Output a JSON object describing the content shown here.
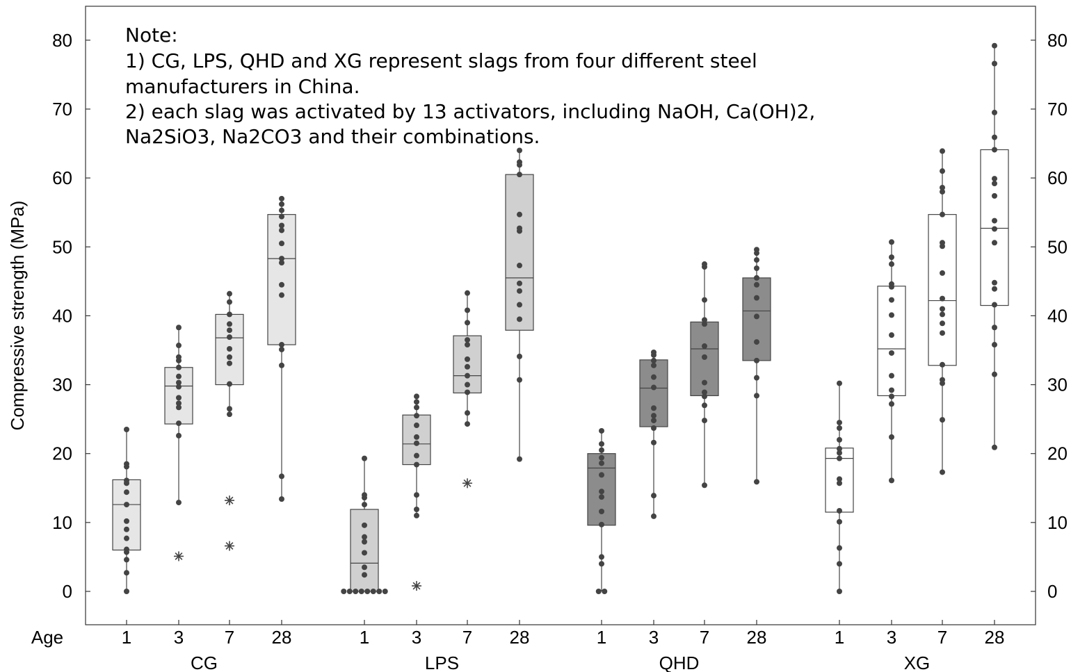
{
  "chart_data": {
    "type": "boxplot",
    "ylabel": "Compressive strength (MPa)",
    "ylim": [
      -5,
      85
    ],
    "yticks": [
      0,
      10,
      20,
      30,
      40,
      50,
      60,
      70,
      80
    ],
    "grid": false,
    "x_row_label": "Age",
    "ages": [
      "1",
      "3",
      "7",
      "28"
    ],
    "note": [
      "Note:",
      "1) CG, LPS, QHD and XG represent slags from four different steel",
      "manufacturers in China.",
      "2) each slag was activated by 13 activators, including NaOH, Ca(OH)2,",
      "Na2SiO3, Na2CO3 and their combinations."
    ],
    "groups": [
      {
        "name": "CG",
        "fill": "#e6e6e6",
        "boxes": [
          {
            "age": "1",
            "q1": 6.0,
            "median": 12.6,
            "q3": 16.2,
            "whisker_low": 0.0,
            "whisker_high": 23.5,
            "points": [
              0.0,
              2.7,
              4.6,
              5.7,
              6.1,
              7.7,
              9.0,
              10.2,
              12.6,
              14.4,
              15.7,
              16.1,
              18.1,
              18.5,
              23.5
            ],
            "outliers": []
          },
          {
            "age": "3",
            "q1": 24.3,
            "median": 29.8,
            "q3": 32.5,
            "whisker_low": 12.9,
            "whisker_high": 38.3,
            "points": [
              12.9,
              22.6,
              24.4,
              26.7,
              27.3,
              28.1,
              29.7,
              30.3,
              31.2,
              32.5,
              33.5,
              34.0,
              35.7,
              38.3
            ],
            "outliers": [
              5.1
            ]
          },
          {
            "age": "7",
            "q1": 30.0,
            "median": 36.8,
            "q3": 40.2,
            "whisker_low": 25.7,
            "whisker_high": 43.2,
            "points": [
              25.7,
              26.5,
              30.1,
              33.1,
              34.0,
              35.2,
              36.9,
              37.9,
              38.8,
              40.2,
              42.0,
              43.2
            ],
            "outliers": [
              13.2,
              6.6
            ]
          },
          {
            "age": "28",
            "q1": 35.8,
            "median": 48.3,
            "q3": 54.7,
            "whisker_low": 13.4,
            "whisker_high": 57.0,
            "points": [
              13.4,
              16.7,
              32.8,
              35.1,
              35.8,
              43.0,
              44.5,
              47.7,
              48.3,
              50.5,
              52.4,
              53.1,
              54.4,
              55.3,
              56.2,
              57.0
            ],
            "outliers": []
          }
        ]
      },
      {
        "name": "LPS",
        "fill": "#d0d0d0",
        "boxes": [
          {
            "age": "1",
            "q1": 0.0,
            "median": 4.1,
            "q3": 11.9,
            "whisker_low": 0.0,
            "whisker_high": 19.3,
            "points": [
              0.0,
              0.0,
              0.0,
              0.0,
              0.0,
              0.0,
              0.0,
              0.0,
              2.4,
              3.5,
              5.6,
              7.2,
              7.9,
              9.6,
              12.6,
              13.6,
              14.0,
              19.3
            ],
            "outliers": []
          },
          {
            "age": "3",
            "q1": 18.4,
            "median": 21.4,
            "q3": 25.6,
            "whisker_low": 11.0,
            "whisker_high": 28.3,
            "points": [
              11.0,
              11.9,
              14.0,
              18.4,
              19.7,
              21.5,
              22.4,
              24.1,
              25.5,
              26.7,
              27.5,
              28.3
            ],
            "outliers": [
              0.8
            ]
          },
          {
            "age": "7",
            "q1": 28.8,
            "median": 31.3,
            "q3": 37.1,
            "whisker_low": 24.3,
            "whisker_high": 43.3,
            "points": [
              24.3,
              25.9,
              28.9,
              30.0,
              31.3,
              32.6,
              33.7,
              35.8,
              36.5,
              39.0,
              40.8,
              43.3
            ],
            "outliers": [
              15.7
            ]
          },
          {
            "age": "28",
            "q1": 37.9,
            "median": 45.5,
            "q3": 60.5,
            "whisker_low": 19.2,
            "whisker_high": 64.0,
            "points": [
              19.2,
              30.7,
              34.1,
              39.5,
              41.6,
              43.6,
              44.7,
              47.3,
              52.3,
              52.7,
              54.7,
              60.5,
              61.9,
              62.3,
              64.0
            ],
            "outliers": []
          }
        ]
      },
      {
        "name": "QHD",
        "fill": "#8c8c8c",
        "boxes": [
          {
            "age": "1",
            "q1": 9.6,
            "median": 17.9,
            "q3": 20.0,
            "whisker_low": 0.0,
            "whisker_high": 23.3,
            "points": [
              0.0,
              0.0,
              4.0,
              5.0,
              9.7,
              11.6,
              13.7,
              14.5,
              16.9,
              18.6,
              19.4,
              20.5,
              21.4,
              23.3
            ],
            "outliers": []
          },
          {
            "age": "3",
            "q1": 23.9,
            "median": 29.5,
            "q3": 33.6,
            "whisker_low": 10.9,
            "whisker_high": 34.7,
            "points": [
              10.9,
              13.9,
              21.6,
              23.7,
              24.8,
              25.5,
              26.6,
              29.6,
              31.1,
              32.8,
              33.5,
              34.3,
              34.7
            ],
            "outliers": []
          },
          {
            "age": "7",
            "q1": 28.4,
            "median": 35.2,
            "q3": 39.1,
            "whisker_low": 15.4,
            "whisker_high": 47.5,
            "points": [
              15.4,
              24.8,
              27.0,
              28.3,
              28.9,
              30.3,
              34.0,
              35.6,
              38.8,
              39.4,
              42.3,
              47.1,
              47.5
            ],
            "outliers": []
          },
          {
            "age": "28",
            "q1": 33.5,
            "median": 40.7,
            "q3": 45.5,
            "whisker_low": 15.9,
            "whisker_high": 49.6,
            "points": [
              15.9,
              28.4,
              31.0,
              33.5,
              36.2,
              39.9,
              42.6,
              44.5,
              45.5,
              46.9,
              48.1,
              49.1,
              49.6
            ],
            "outliers": []
          }
        ]
      },
      {
        "name": "XG",
        "fill": "#ffffff",
        "boxes": [
          {
            "age": "1",
            "q1": 11.5,
            "median": 19.3,
            "q3": 20.8,
            "whisker_low": 0.0,
            "whisker_high": 30.2,
            "points": [
              0.0,
              4.0,
              6.3,
              10.1,
              11.7,
              15.7,
              16.3,
              19.3,
              20.1,
              20.7,
              22.0,
              23.7,
              24.5,
              30.2
            ],
            "outliers": []
          },
          {
            "age": "3",
            "q1": 28.4,
            "median": 35.2,
            "q3": 44.3,
            "whisker_low": 16.1,
            "whisker_high": 50.7,
            "points": [
              16.1,
              22.4,
              27.2,
              28.3,
              29.2,
              31.3,
              34.6,
              37.2,
              40.1,
              42.3,
              44.2,
              44.6,
              47.5,
              48.5,
              50.7
            ],
            "outliers": []
          },
          {
            "age": "7",
            "q1": 32.8,
            "median": 42.2,
            "q3": 54.7,
            "whisker_low": 17.3,
            "whisker_high": 63.9,
            "points": [
              17.3,
              24.9,
              30.2,
              30.7,
              32.9,
              37.5,
              38.9,
              40.2,
              41.0,
              42.5,
              46.2,
              50.1,
              50.6,
              54.7,
              58.0,
              58.6,
              61.0,
              63.9
            ],
            "outliers": []
          },
          {
            "age": "28",
            "q1": 41.5,
            "median": 52.7,
            "q3": 64.1,
            "whisker_low": 20.9,
            "whisker_high": 79.2,
            "points": [
              20.9,
              31.5,
              35.8,
              38.3,
              41.6,
              43.9,
              44.8,
              50.6,
              52.6,
              53.8,
              57.4,
              59.2,
              59.9,
              64.1,
              65.9,
              69.5,
              76.6,
              79.2
            ],
            "outliers": []
          }
        ]
      }
    ]
  }
}
